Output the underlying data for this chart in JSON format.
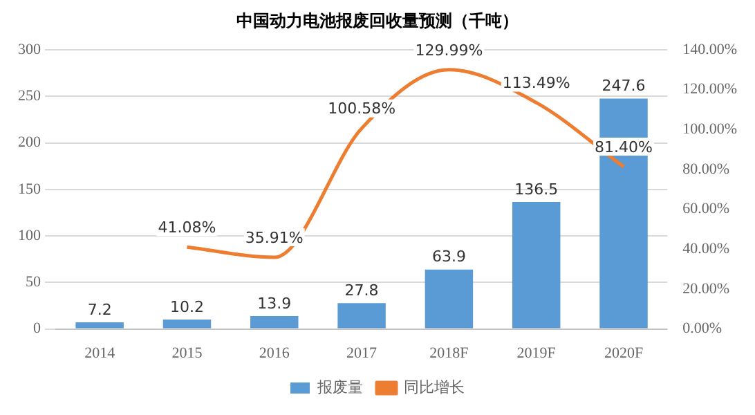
{
  "chart_data": {
    "type": "bar",
    "title": "中国动力电池报废回收量预测（千吨）",
    "categories": [
      "2014",
      "2015",
      "2016",
      "2017",
      "2018F",
      "2019F",
      "2020F"
    ],
    "series": [
      {
        "name": "报废量",
        "color": "#5b9bd5",
        "values": [
          7.2,
          10.2,
          13.9,
          27.8,
          63.9,
          136.5,
          247.6
        ],
        "value_labels": [
          "7.2",
          "10.2",
          "13.9",
          "27.8",
          "63.9",
          "136.5",
          "247.6"
        ]
      },
      {
        "name": "同比增长",
        "type": "line",
        "axis": "y2",
        "color": "#ed7d31",
        "values": [
          null,
          41.08,
          35.91,
          100.58,
          129.99,
          113.49,
          81.4
        ],
        "value_labels": [
          null,
          "41.08%",
          "35.91%",
          "100.58%",
          "129.99%",
          "113.49%",
          "81.40%"
        ]
      }
    ],
    "ylim": [
      0,
      300
    ],
    "yticks": [
      0,
      50,
      100,
      150,
      200,
      250,
      300
    ],
    "y2lim": [
      0,
      140
    ],
    "y2ticks": [
      {
        "value": 0,
        "label": "0.00%"
      },
      {
        "value": 20,
        "label": "20.00%"
      },
      {
        "value": 40,
        "label": "40.00%"
      },
      {
        "value": 60,
        "label": "60.00%"
      },
      {
        "value": 80,
        "label": "80.00%"
      },
      {
        "value": 100,
        "label": "100.00%"
      },
      {
        "value": 120,
        "label": "120.00%"
      },
      {
        "value": 140,
        "label": "140.00%"
      }
    ],
    "grid": "y",
    "legend": "bottom",
    "marker": "none"
  }
}
